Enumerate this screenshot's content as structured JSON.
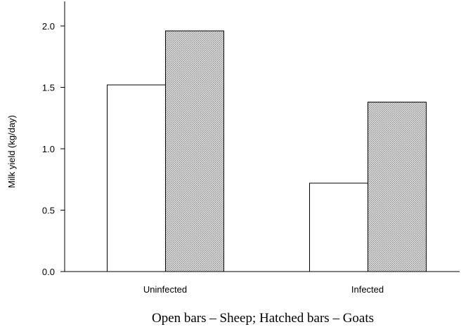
{
  "chart_data": {
    "type": "bar",
    "categories": [
      "Uninfected",
      "Infected"
    ],
    "series": [
      {
        "values": [
          1.52,
          0.72
        ],
        "fill": "open"
      },
      {
        "values": [
          1.96,
          1.38
        ],
        "fill": "hatched"
      }
    ],
    "ylabel": "Milk yield (kg/day)",
    "xlabel": "",
    "ylim": [
      0,
      2.2
    ],
    "yticks": [
      "0.0",
      "0.5",
      "1.0",
      "1.5",
      "2.0"
    ],
    "ytick_values": [
      0,
      0.5,
      1.0,
      1.5,
      2.0
    ],
    "caption": "Open bars – Sheep;  Hatched bars – Goats",
    "grid": false,
    "colors": {
      "open_fill": "#ffffff",
      "hatched_fill": "#c4c4c4",
      "stroke": "#000000"
    }
  }
}
